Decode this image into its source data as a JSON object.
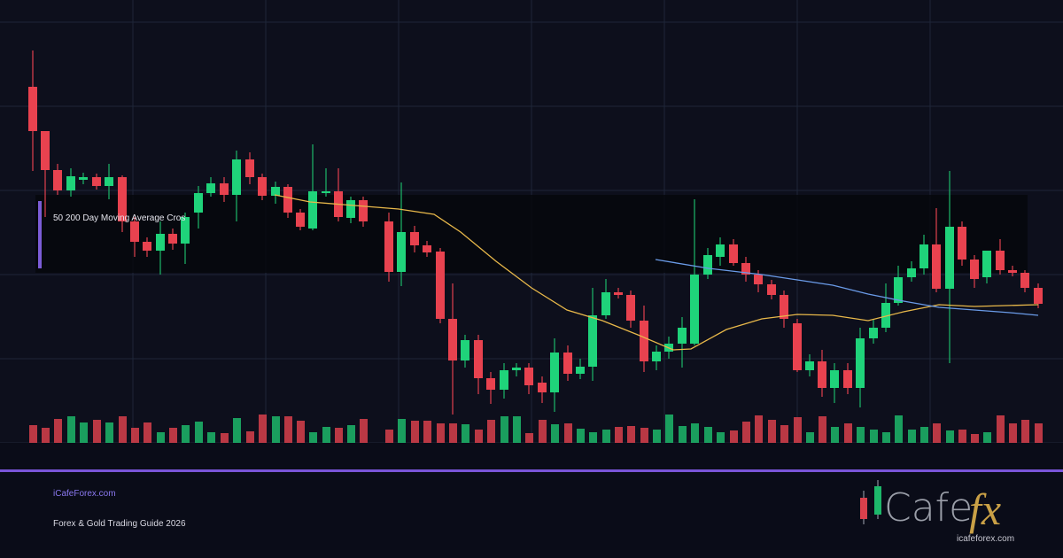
{
  "overlay": {
    "label": "50 200 Day Moving Average Cros"
  },
  "footer": {
    "site": "iCafeForex.com",
    "title": "Forex & Gold Trading Guide 2026"
  },
  "logo": {
    "word": "Cafe",
    "accent": "fx",
    "url": "icafeforex.com"
  }
}
